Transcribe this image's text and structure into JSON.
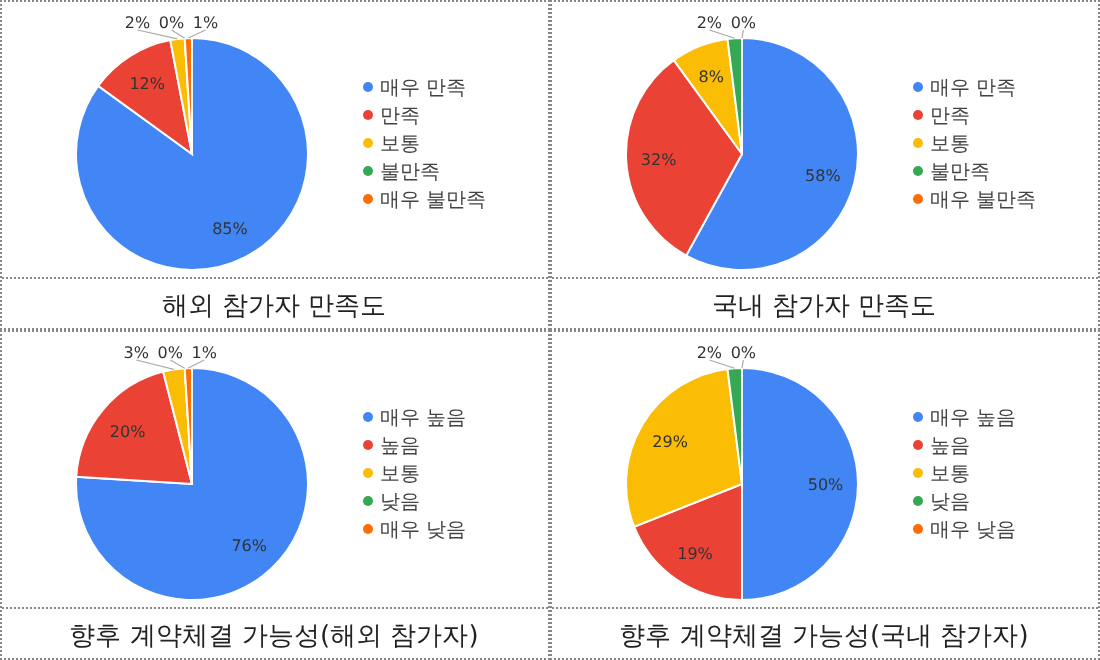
{
  "chart_data": [
    {
      "type": "pie",
      "title": "해외 참가자 만족도",
      "categories": [
        "매우 만족",
        "만족",
        "보통",
        "불만족",
        "매우 불만족"
      ],
      "values": [
        85,
        12,
        2,
        0,
        1
      ],
      "value_labels": [
        "85%",
        "12%",
        "2%",
        "0%",
        "1%"
      ],
      "colors": [
        "#4285f4",
        "#ea4335",
        "#fbbc04",
        "#34a853",
        "#ff6d01"
      ],
      "legend": "right"
    },
    {
      "type": "pie",
      "title": "국내 참가자 만족도",
      "categories": [
        "매우 만족",
        "만족",
        "보통",
        "불만족",
        "매우 불만족"
      ],
      "values": [
        58,
        32,
        8,
        2,
        0
      ],
      "value_labels": [
        "58%",
        "32%",
        "8%",
        "2%",
        "0%"
      ],
      "colors": [
        "#4285f4",
        "#ea4335",
        "#fbbc04",
        "#34a853",
        "#ff6d01"
      ],
      "legend": "right"
    },
    {
      "type": "pie",
      "title": "향후 계약체결 가능성(해외 참가자)",
      "categories": [
        "매우 높음",
        "높음",
        "보통",
        "낮음",
        "매우 낮음"
      ],
      "values": [
        76,
        20,
        3,
        0,
        1
      ],
      "value_labels": [
        "76%",
        "20%",
        "3%",
        "0%",
        "1%"
      ],
      "colors": [
        "#4285f4",
        "#ea4335",
        "#fbbc04",
        "#34a853",
        "#ff6d01"
      ],
      "legend": "right"
    },
    {
      "type": "pie",
      "title": "향후 계약체결 가능성(국내 참가자)",
      "categories": [
        "매우 높음",
        "높음",
        "보통",
        "낮음",
        "매우 낮음"
      ],
      "values": [
        50,
        19,
        29,
        2,
        0
      ],
      "value_labels": [
        "50%",
        "19%",
        "29%",
        "2%",
        "0%"
      ],
      "colors": [
        "#4285f4",
        "#ea4335",
        "#fbbc04",
        "#34a853",
        "#ff6d01"
      ],
      "legend": "right"
    }
  ]
}
